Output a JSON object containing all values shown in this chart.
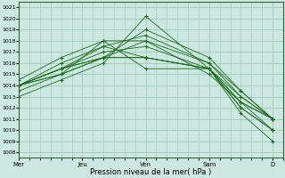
{
  "xlabel": "Pression niveau de la mer( hPa )",
  "ylim": [
    1007.5,
    1021.5
  ],
  "yticks": [
    1008,
    1009,
    1010,
    1011,
    1012,
    1013,
    1014,
    1015,
    1016,
    1017,
    1018,
    1019,
    1020,
    1021
  ],
  "xtick_labels": [
    "Mer",
    "Jeu",
    "Ven",
    "Sam",
    "D"
  ],
  "xtick_positions": [
    0,
    24,
    48,
    72,
    96
  ],
  "xlim": [
    0,
    100
  ],
  "background_color": "#cce8e0",
  "grid_color": "#a0c8b8",
  "line_color": "#1a6b1a",
  "marker": "+",
  "series": [
    [
      1013.0,
      1014.5,
      1016.0,
      1020.2,
      1015.5,
      1013.0,
      1011.0
    ],
    [
      1014.0,
      1015.5,
      1016.5,
      1019.0,
      1016.5,
      1013.5,
      1011.0
    ],
    [
      1014.0,
      1015.5,
      1017.5,
      1018.5,
      1016.0,
      1013.0,
      1011.0
    ],
    [
      1014.0,
      1015.5,
      1016.5,
      1018.0,
      1016.0,
      1013.5,
      1011.0
    ],
    [
      1014.0,
      1015.0,
      1016.5,
      1016.5,
      1015.5,
      1012.5,
      1010.0
    ],
    [
      1014.0,
      1015.0,
      1016.5,
      1016.5,
      1015.5,
      1012.0,
      1010.0
    ],
    [
      1014.0,
      1015.5,
      1017.0,
      1017.5,
      1015.5,
      1012.0,
      1010.0
    ],
    [
      1014.0,
      1016.0,
      1017.5,
      1016.5,
      1015.5,
      1012.5,
      1011.0
    ],
    [
      1013.5,
      1015.0,
      1018.0,
      1018.0,
      1015.0,
      1012.5,
      1011.0
    ],
    [
      1014.5,
      1016.5,
      1018.0,
      1015.5,
      1015.5,
      1011.5,
      1009.0
    ]
  ],
  "series_x": [
    0,
    16,
    32,
    48,
    72,
    84,
    96
  ]
}
